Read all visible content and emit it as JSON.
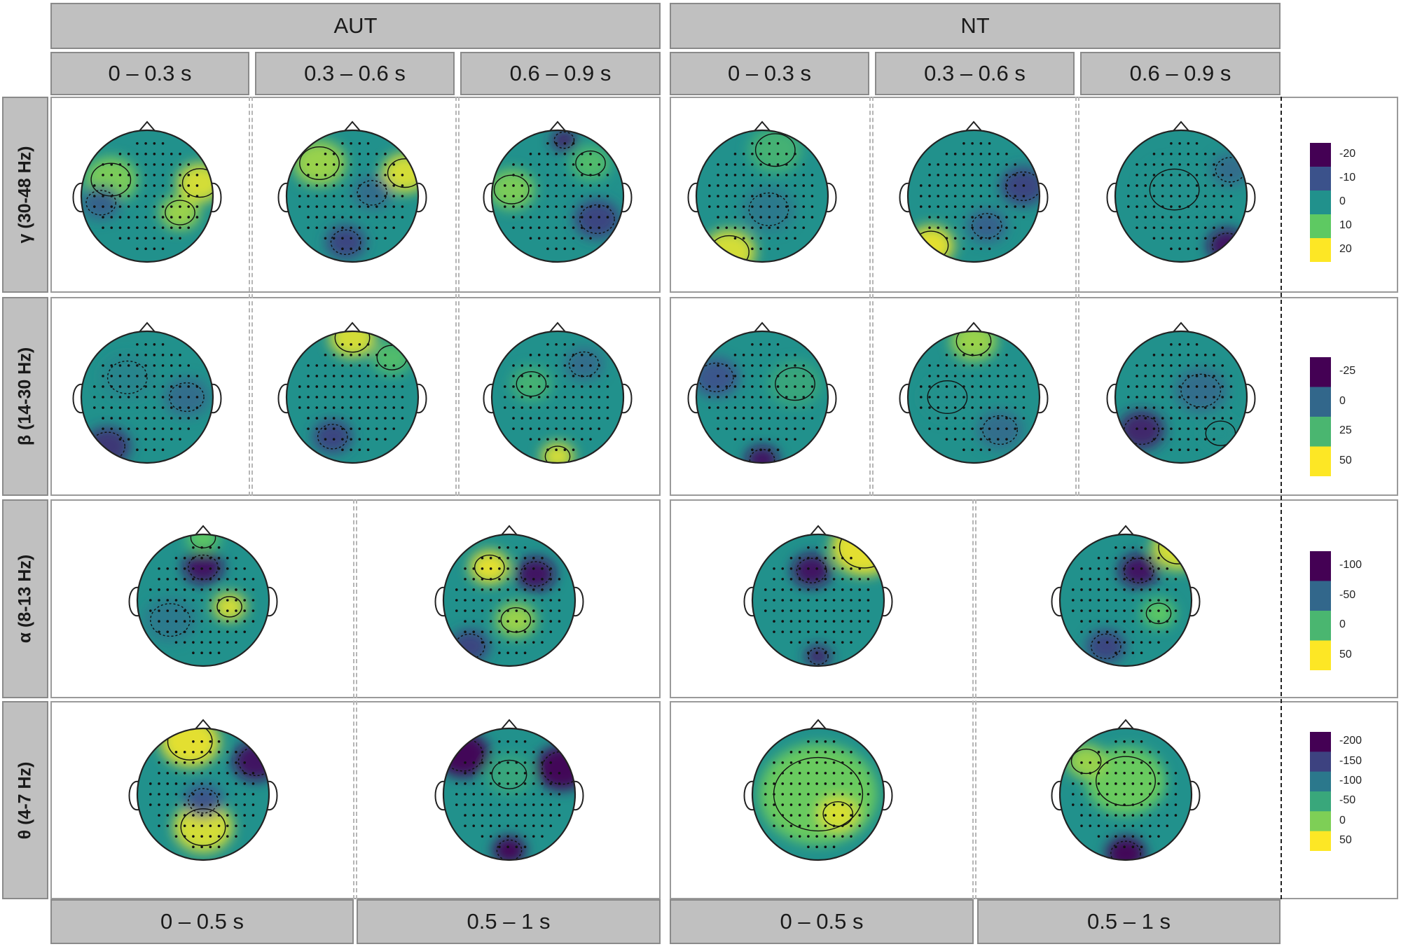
{
  "groups": {
    "aut": "AUT",
    "nt": "NT"
  },
  "time_windows_short": [
    "0 – 0.3 s",
    "0.3 – 0.6 s",
    "0.6 – 0.9 s"
  ],
  "time_windows_long": [
    "0 – 0.5 s",
    "0.5 – 1 s"
  ],
  "bands": [
    {
      "label": "γ  (30-48 Hz)",
      "colorbar_ticks": [
        "-20",
        "-10",
        "0",
        "10",
        "20"
      ]
    },
    {
      "label": "β  (14-30 Hz)",
      "colorbar_ticks": [
        "-25",
        "0",
        "25",
        "50"
      ]
    },
    {
      "label": "α  (8-13 Hz)",
      "colorbar_ticks": [
        "-100",
        "-50",
        "0",
        "50"
      ]
    },
    {
      "label": "θ  (4-7 Hz)",
      "colorbar_ticks": [
        "-200",
        "-150",
        "-100",
        "-50",
        "0",
        "50"
      ]
    }
  ],
  "colormap": [
    "#440154",
    "#3b528b",
    "#21918c",
    "#5ec962",
    "#fde725"
  ],
  "maps": {
    "gamma": [
      {
        "group": "AUT",
        "window": "0 – 0.3 s",
        "blobs": [
          [
            0.8,
            0.2,
            0.9,
            0.35
          ],
          [
            -0.55,
            0.25,
            0.6,
            0.4
          ],
          [
            0.5,
            -0.25,
            0.7,
            0.3
          ],
          [
            -0.7,
            -0.1,
            -0.4,
            0.3
          ]
        ]
      },
      {
        "group": "AUT",
        "window": "0.3 – 0.6 s",
        "blobs": [
          [
            -0.5,
            0.5,
            0.7,
            0.4
          ],
          [
            0.8,
            0.35,
            0.9,
            0.35
          ],
          [
            -0.1,
            -0.7,
            -0.6,
            0.3
          ],
          [
            0.3,
            0.05,
            -0.3,
            0.3
          ]
        ]
      },
      {
        "group": "AUT",
        "window": "0.6 – 0.9 s",
        "blobs": [
          [
            -0.7,
            0.1,
            0.6,
            0.35
          ],
          [
            0.6,
            -0.35,
            -0.6,
            0.35
          ],
          [
            0.1,
            0.85,
            -0.8,
            0.2
          ],
          [
            0.5,
            0.5,
            0.4,
            0.3
          ]
        ]
      },
      {
        "group": "NT",
        "window": "0 – 0.3 s",
        "blobs": [
          [
            -0.5,
            -0.85,
            0.9,
            0.4
          ],
          [
            0.1,
            -0.2,
            -0.2,
            0.4
          ],
          [
            0.2,
            0.7,
            0.3,
            0.4
          ]
        ]
      },
      {
        "group": "NT",
        "window": "0.3 – 0.6 s",
        "blobs": [
          [
            -0.65,
            -0.75,
            0.95,
            0.35
          ],
          [
            0.75,
            0.15,
            -0.6,
            0.35
          ],
          [
            0.2,
            -0.45,
            -0.4,
            0.3
          ]
        ]
      },
      {
        "group": "NT",
        "window": "0.6 – 0.9 s",
        "blobs": [
          [
            0.7,
            -0.75,
            -0.9,
            0.3
          ],
          [
            -0.1,
            0.1,
            0.0,
            0.5
          ],
          [
            0.75,
            0.4,
            -0.3,
            0.3
          ]
        ]
      }
    ],
    "beta": [
      {
        "group": "AUT",
        "window": "0 – 0.3 s",
        "blobs": [
          [
            -0.6,
            -0.75,
            -0.7,
            0.35
          ],
          [
            0.6,
            0.0,
            -0.3,
            0.35
          ],
          [
            -0.3,
            0.3,
            -0.1,
            0.4
          ]
        ]
      },
      {
        "group": "AUT",
        "window": "0.3 – 0.6 s",
        "blobs": [
          [
            0.0,
            0.9,
            0.9,
            0.35
          ],
          [
            -0.3,
            -0.6,
            -0.6,
            0.3
          ],
          [
            0.6,
            0.6,
            0.4,
            0.3
          ]
        ]
      },
      {
        "group": "AUT",
        "window": "0.6 – 0.9 s",
        "blobs": [
          [
            0.0,
            -0.9,
            0.9,
            0.25
          ],
          [
            -0.4,
            0.2,
            0.3,
            0.3
          ],
          [
            0.4,
            0.5,
            -0.3,
            0.3
          ]
        ]
      },
      {
        "group": "NT",
        "window": "0 – 0.3 s",
        "blobs": [
          [
            0.0,
            -0.95,
            -0.9,
            0.25
          ],
          [
            -0.7,
            0.3,
            -0.5,
            0.35
          ],
          [
            0.5,
            0.2,
            0.2,
            0.4
          ]
        ]
      },
      {
        "group": "NT",
        "window": "0.3 – 0.6 s",
        "blobs": [
          [
            0.0,
            0.85,
            0.7,
            0.35
          ],
          [
            0.4,
            -0.5,
            -0.3,
            0.35
          ],
          [
            -0.4,
            0.0,
            0.0,
            0.4
          ]
        ]
      },
      {
        "group": "NT",
        "window": "0.6 – 0.9 s",
        "blobs": [
          [
            -0.6,
            -0.5,
            -0.8,
            0.35
          ],
          [
            0.3,
            0.1,
            -0.3,
            0.4
          ],
          [
            0.6,
            -0.55,
            0.0,
            0.3
          ]
        ]
      }
    ],
    "alpha": [
      {
        "group": "AUT",
        "window": "0 – 0.5 s",
        "blobs": [
          [
            0.4,
            -0.1,
            0.9,
            0.25
          ],
          [
            0.0,
            0.5,
            -0.9,
            0.3
          ],
          [
            -0.5,
            -0.3,
            -0.2,
            0.4
          ],
          [
            0.0,
            0.95,
            0.5,
            0.25
          ]
        ]
      },
      {
        "group": "AUT",
        "window": "0.5 – 1 s",
        "blobs": [
          [
            -0.3,
            0.5,
            0.95,
            0.3
          ],
          [
            0.1,
            -0.3,
            0.7,
            0.3
          ],
          [
            0.4,
            0.4,
            -0.9,
            0.3
          ],
          [
            -0.6,
            -0.7,
            -0.6,
            0.3
          ]
        ]
      },
      {
        "group": "NT",
        "window": "0 – 0.5 s",
        "blobs": [
          [
            0.7,
            0.8,
            0.95,
            0.5
          ],
          [
            -0.1,
            0.45,
            -0.9,
            0.3
          ],
          [
            0.0,
            -0.85,
            -0.8,
            0.2
          ]
        ]
      },
      {
        "group": "NT",
        "window": "0.5 – 1 s",
        "blobs": [
          [
            0.8,
            0.8,
            0.9,
            0.4
          ],
          [
            0.2,
            0.45,
            -0.9,
            0.3
          ],
          [
            -0.3,
            -0.7,
            -0.6,
            0.3
          ],
          [
            0.5,
            -0.2,
            0.5,
            0.25
          ]
        ]
      }
    ],
    "theta": [
      {
        "group": "AUT",
        "window": "0 – 0.5 s",
        "blobs": [
          [
            -0.2,
            0.8,
            0.95,
            0.45
          ],
          [
            0.0,
            -0.5,
            0.9,
            0.45
          ],
          [
            0.8,
            0.5,
            -0.9,
            0.35
          ],
          [
            0.0,
            -0.1,
            -0.5,
            0.3
          ]
        ]
      },
      {
        "group": "AUT",
        "window": "0.5 – 1 s",
        "blobs": [
          [
            0.8,
            0.4,
            -1.0,
            0.4
          ],
          [
            -0.7,
            0.6,
            -1.0,
            0.4
          ],
          [
            0.0,
            -0.85,
            -1.0,
            0.25
          ],
          [
            0.0,
            0.3,
            0.2,
            0.35
          ]
        ]
      },
      {
        "group": "NT",
        "window": "0 – 0.5 s",
        "blobs": [
          [
            0.0,
            0.0,
            0.55,
            0.9
          ],
          [
            0.3,
            -0.3,
            0.9,
            0.3
          ]
        ]
      },
      {
        "group": "NT",
        "window": "0.5 – 1 s",
        "blobs": [
          [
            0.0,
            -0.9,
            -1.0,
            0.3
          ],
          [
            0.0,
            0.2,
            0.55,
            0.6
          ],
          [
            -0.6,
            0.5,
            0.7,
            0.3
          ]
        ]
      }
    ]
  }
}
